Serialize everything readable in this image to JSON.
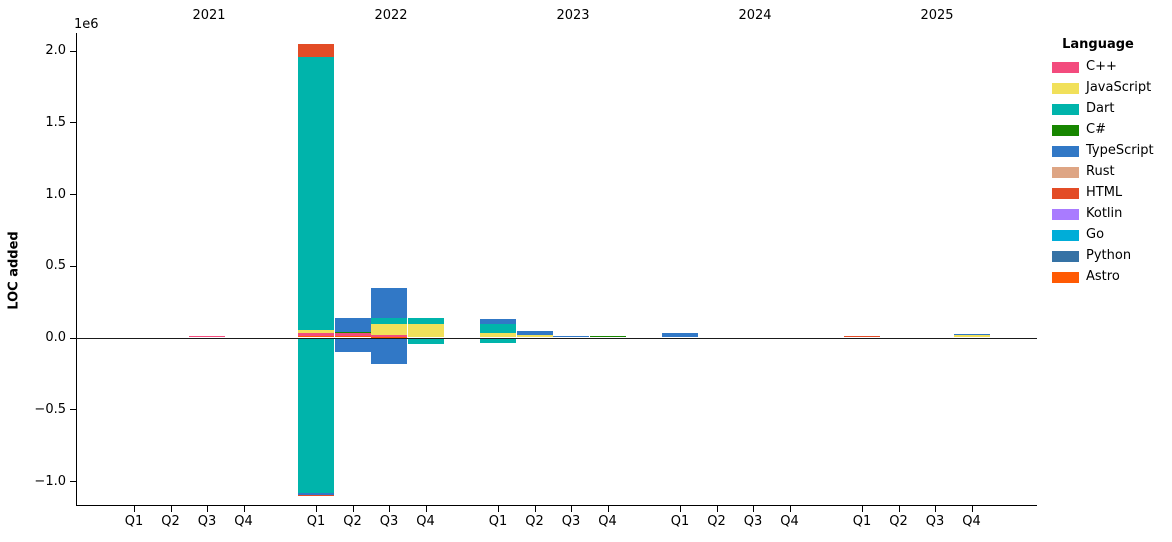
{
  "figure": {
    "ylabel": "LOC added",
    "offset_text": "1e6"
  },
  "chart_data": {
    "type": "bar",
    "stacked": true,
    "title": "",
    "xlabel": "",
    "ylabel": "LOC added",
    "y_offset_text": "1e6",
    "ylim": [
      -1170000,
      2120000
    ],
    "grid": false,
    "zero_line": true,
    "yticks": [
      {
        "value": 2000000,
        "label": "2.0"
      },
      {
        "value": 1500000,
        "label": "1.5"
      },
      {
        "value": 1000000,
        "label": "1.0"
      },
      {
        "value": 500000,
        "label": "0.5"
      },
      {
        "value": 0,
        "label": "0.0"
      },
      {
        "value": -500000,
        "label": "−0.5"
      },
      {
        "value": -1000000,
        "label": "−1.0"
      }
    ],
    "years": [
      "2021",
      "2022",
      "2023",
      "2024",
      "2025"
    ],
    "quarter_labels": [
      "Q1",
      "Q2",
      "Q3",
      "Q4"
    ],
    "legend": {
      "title": "Language",
      "position": "right",
      "entries": [
        {
          "label": "C++",
          "color": "#f34b7d"
        },
        {
          "label": "JavaScript",
          "color": "#f1e05a"
        },
        {
          "label": "Dart",
          "color": "#00b4ab"
        },
        {
          "label": "C#",
          "color": "#178600"
        },
        {
          "label": "TypeScript",
          "color": "#3178c6"
        },
        {
          "label": "Rust",
          "color": "#dea584"
        },
        {
          "label": "HTML",
          "color": "#e34c26"
        },
        {
          "label": "Kotlin",
          "color": "#a97bff"
        },
        {
          "label": "Go",
          "color": "#00add8"
        },
        {
          "label": "Python",
          "color": "#3572a5"
        },
        {
          "label": "Astro",
          "color": "#ff5a03"
        }
      ]
    },
    "bars": [
      {
        "year": "2021",
        "quarter": "Q3",
        "segments": [
          {
            "language": "C++",
            "value": 10000
          }
        ]
      },
      {
        "year": "2022",
        "quarter": "Q1",
        "segments": [
          {
            "language": "Astro",
            "value": 8000
          },
          {
            "language": "C++",
            "value": 22000
          },
          {
            "language": "JavaScript",
            "value": 20000
          },
          {
            "language": "Dart",
            "value": 1905000
          },
          {
            "language": "HTML",
            "value": 88000
          },
          {
            "language": "Dart",
            "value": -1087000
          },
          {
            "language": "TypeScript",
            "value": -8000
          },
          {
            "language": "HTML",
            "value": -12000
          }
        ]
      },
      {
        "year": "2022",
        "quarter": "Q2",
        "segments": [
          {
            "language": "Astro",
            "value": 7000
          },
          {
            "language": "C++",
            "value": 21000
          },
          {
            "language": "C#",
            "value": 11000
          },
          {
            "language": "TypeScript",
            "value": 94000
          },
          {
            "language": "Python",
            "value": -10000
          },
          {
            "language": "TypeScript",
            "value": -92000
          }
        ]
      },
      {
        "year": "2022",
        "quarter": "Q3",
        "segments": [
          {
            "language": "Astro",
            "value": 4000
          },
          {
            "language": "C++",
            "value": 14000
          },
          {
            "language": "JavaScript",
            "value": 77000
          },
          {
            "language": "Dart",
            "value": 42000
          },
          {
            "language": "TypeScript",
            "value": 205000
          },
          {
            "language": "TypeScript",
            "value": -188000
          }
        ]
      },
      {
        "year": "2022",
        "quarter": "Q4",
        "segments": [
          {
            "language": "JavaScript",
            "value": 97000
          },
          {
            "language": "Dart",
            "value": 41000
          },
          {
            "language": "Dart",
            "value": -45000
          }
        ]
      },
      {
        "year": "2023",
        "quarter": "Q1",
        "segments": [
          {
            "language": "JavaScript",
            "value": 28000
          },
          {
            "language": "Dart",
            "value": 63000
          },
          {
            "language": "TypeScript",
            "value": 41000
          },
          {
            "language": "Dart",
            "value": -35000
          }
        ]
      },
      {
        "year": "2023",
        "quarter": "Q2",
        "segments": [
          {
            "language": "JavaScript",
            "value": 18000
          },
          {
            "language": "TypeScript",
            "value": 28000
          }
        ]
      },
      {
        "year": "2023",
        "quarter": "Q3",
        "segments": [
          {
            "language": "TypeScript",
            "value": 10000
          }
        ]
      },
      {
        "year": "2023",
        "quarter": "Q4",
        "segments": [
          {
            "language": "C#",
            "value": 9000
          }
        ]
      },
      {
        "year": "2024",
        "quarter": "Q1",
        "segments": [
          {
            "language": "TypeScript",
            "value": 32000
          }
        ]
      },
      {
        "year": "2025",
        "quarter": "Q1",
        "segments": [
          {
            "language": "HTML",
            "value": 9000
          }
        ]
      },
      {
        "year": "2025",
        "quarter": "Q4",
        "segments": [
          {
            "language": "JavaScript",
            "value": 16000
          },
          {
            "language": "TypeScript",
            "value": 10000
          }
        ]
      }
    ]
  }
}
